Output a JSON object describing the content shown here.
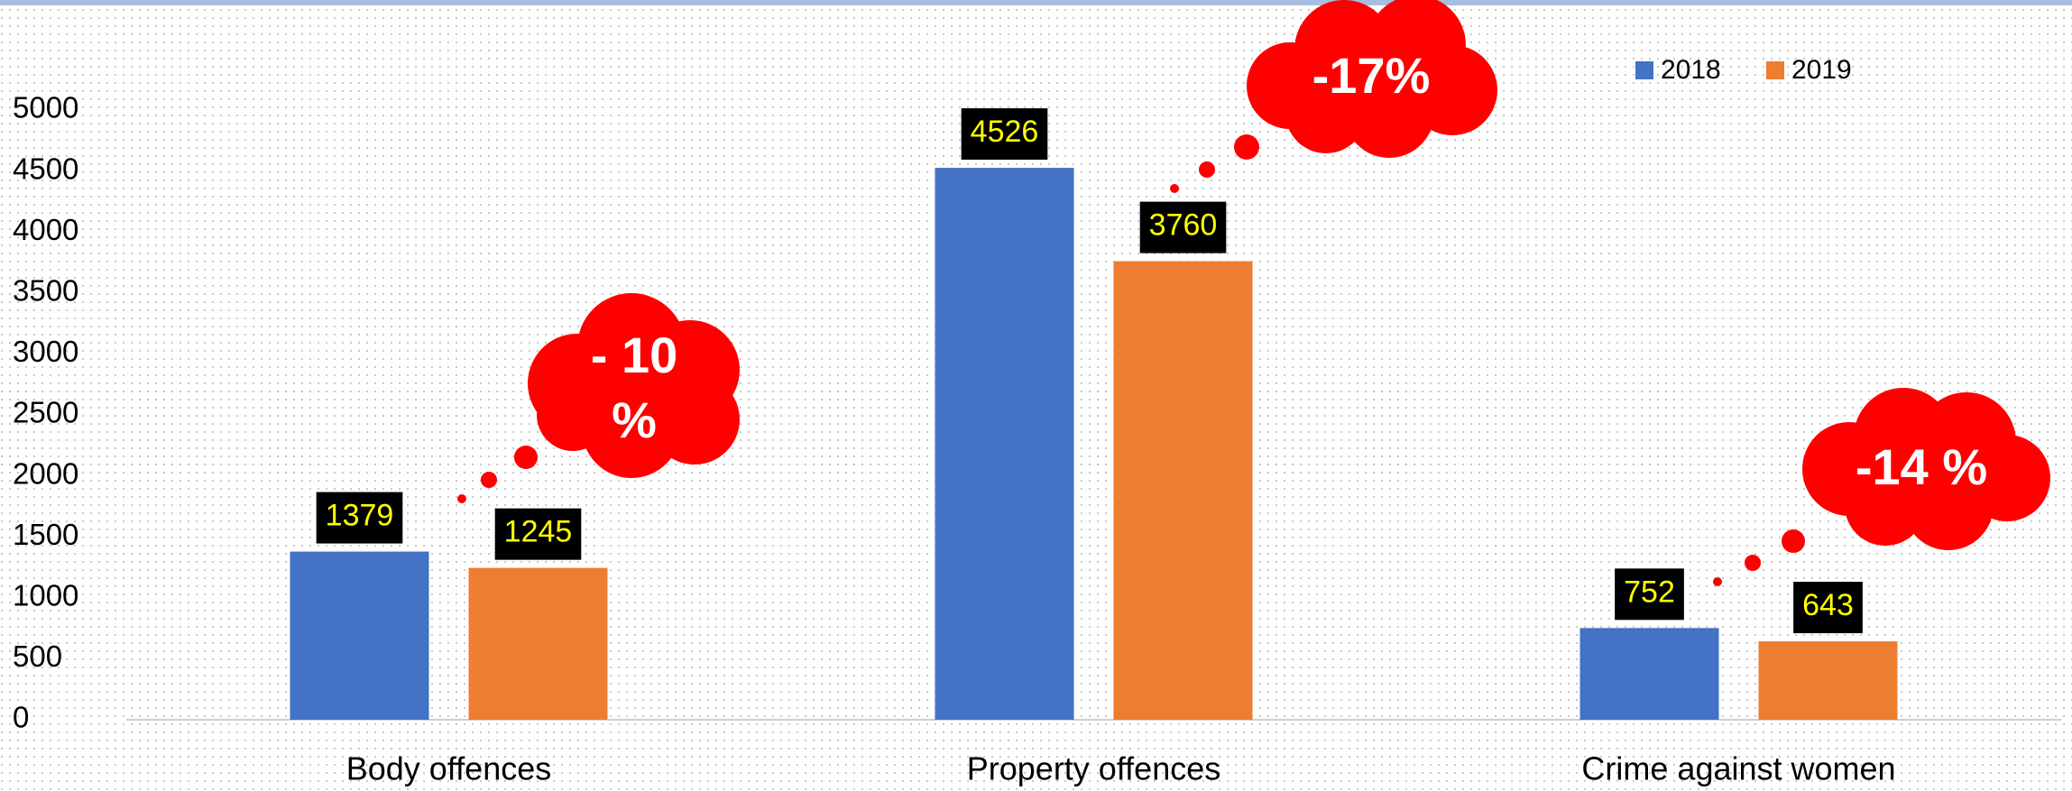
{
  "chart_data": {
    "type": "bar",
    "categories": [
      "Body offences",
      "Property offences",
      "Crime against women"
    ],
    "series": [
      {
        "name": "2018",
        "color": "#4472c4",
        "values": [
          1379,
          4526,
          752
        ]
      },
      {
        "name": "2019",
        "color": "#ed7d31",
        "values": [
          1245,
          3760,
          643
        ]
      }
    ],
    "ylim": [
      0,
      5000
    ],
    "yticks": [
      0,
      500,
      1000,
      1500,
      2000,
      2500,
      3000,
      3500,
      4000,
      4500,
      5000
    ],
    "grid": false,
    "legend": "top-right",
    "annotations": [
      [
        "- 10",
        "%"
      ],
      [
        "-17%"
      ],
      [
        "-14 %"
      ]
    ]
  }
}
